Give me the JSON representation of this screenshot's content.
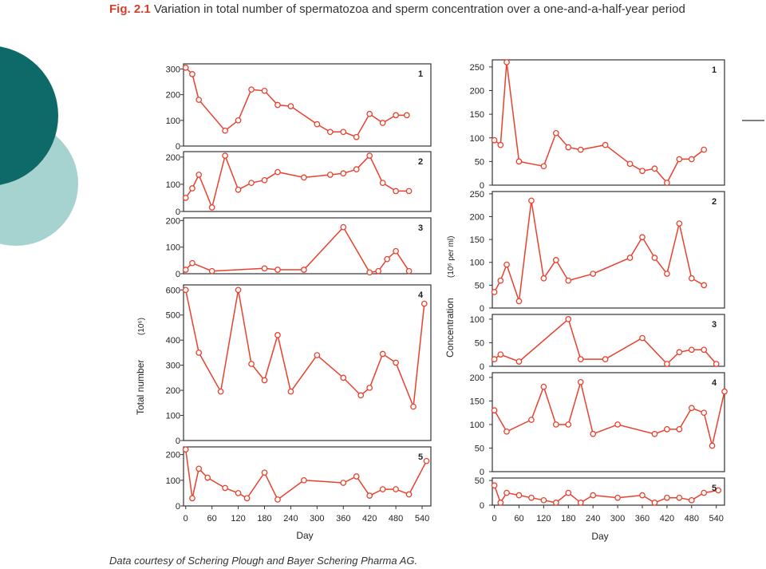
{
  "caption": {
    "label": "Fig. 2.1",
    "text": " Variation in total number of spermatozoa and sperm concentration over a one-and-a-half-year period"
  },
  "credit": "Data courtesy of Schering Plough and Bayer Schering Pharma AG.",
  "colors": {
    "series": "#e8412e",
    "caption_label": "#d2402d",
    "deco_dark": "#0e6a68",
    "deco_light": "#a6d3d0"
  },
  "chart_data": [
    {
      "type": "line",
      "title": "",
      "xlabel": "Day",
      "ylabel": "Total number",
      "ylabel_unit": "(10⁶)",
      "xlim": [
        -5,
        560
      ],
      "xticks": [
        0,
        60,
        120,
        180,
        240,
        300,
        360,
        420,
        480,
        540
      ],
      "panels": [
        {
          "label": "1",
          "ylim": [
            0,
            320
          ],
          "yticks": [
            0,
            100,
            200,
            300
          ],
          "x": [
            0,
            15,
            30,
            90,
            120,
            150,
            180,
            210,
            240,
            300,
            330,
            360,
            390,
            420,
            450,
            480,
            505
          ],
          "y": [
            305,
            280,
            180,
            60,
            100,
            220,
            215,
            160,
            155,
            85,
            55,
            55,
            35,
            125,
            90,
            120,
            120
          ]
        },
        {
          "label": "2",
          "ylim": [
            0,
            220
          ],
          "yticks": [
            0,
            100,
            200
          ],
          "x": [
            0,
            15,
            30,
            60,
            90,
            120,
            150,
            180,
            210,
            270,
            330,
            360,
            390,
            420,
            450,
            480,
            510
          ],
          "y": [
            50,
            85,
            135,
            15,
            205,
            80,
            105,
            115,
            145,
            125,
            135,
            140,
            155,
            205,
            105,
            75,
            75
          ]
        },
        {
          "label": "3",
          "ylim": [
            0,
            210
          ],
          "yticks": [
            0,
            100,
            200
          ],
          "x": [
            0,
            15,
            60,
            180,
            210,
            270,
            360,
            420,
            440,
            460,
            480,
            510
          ],
          "y": [
            15,
            40,
            10,
            20,
            15,
            15,
            175,
            5,
            10,
            55,
            85,
            10
          ]
        },
        {
          "label": "4",
          "ylim": [
            0,
            620
          ],
          "yticks": [
            0,
            100,
            200,
            300,
            400,
            500,
            600
          ],
          "x": [
            0,
            30,
            80,
            120,
            150,
            180,
            210,
            240,
            300,
            360,
            400,
            420,
            450,
            480,
            520,
            545
          ],
          "y": [
            600,
            350,
            195,
            600,
            305,
            240,
            420,
            195,
            340,
            250,
            180,
            210,
            345,
            310,
            135,
            545
          ]
        },
        {
          "label": "5",
          "ylim": [
            0,
            230
          ],
          "yticks": [
            0,
            100,
            200
          ],
          "x": [
            0,
            15,
            30,
            50,
            90,
            120,
            140,
            180,
            210,
            270,
            360,
            390,
            420,
            450,
            480,
            510,
            550
          ],
          "y": [
            220,
            30,
            145,
            110,
            70,
            50,
            30,
            130,
            25,
            100,
            90,
            115,
            40,
            65,
            65,
            45,
            175
          ]
        }
      ]
    },
    {
      "type": "line",
      "title": "",
      "xlabel": "Day",
      "ylabel": "Concentration",
      "ylabel_unit": "(10⁶ per ml)",
      "xlim": [
        -5,
        560
      ],
      "xticks": [
        0,
        60,
        120,
        180,
        240,
        300,
        360,
        420,
        480,
        540
      ],
      "panels": [
        {
          "label": "1",
          "ylim": [
            0,
            265
          ],
          "yticks": [
            0,
            50,
            100,
            150,
            200,
            250
          ],
          "x": [
            0,
            15,
            30,
            60,
            120,
            150,
            180,
            210,
            270,
            330,
            360,
            390,
            420,
            450,
            480,
            510
          ],
          "y": [
            95,
            85,
            260,
            50,
            40,
            110,
            80,
            75,
            85,
            45,
            30,
            35,
            5,
            55,
            55,
            75
          ]
        },
        {
          "label": "2",
          "ylim": [
            0,
            255
          ],
          "yticks": [
            0,
            50,
            100,
            150,
            200,
            250
          ],
          "x": [
            0,
            15,
            30,
            60,
            90,
            120,
            150,
            180,
            240,
            330,
            360,
            390,
            420,
            450,
            480,
            510
          ],
          "y": [
            35,
            60,
            95,
            15,
            235,
            65,
            105,
            60,
            75,
            110,
            155,
            110,
            75,
            185,
            65,
            50
          ]
        },
        {
          "label": "3",
          "ylim": [
            0,
            110
          ],
          "yticks": [
            0,
            50,
            100
          ],
          "x": [
            0,
            15,
            60,
            180,
            210,
            270,
            360,
            420,
            450,
            480,
            510,
            540
          ],
          "y": [
            15,
            25,
            10,
            100,
            15,
            15,
            60,
            5,
            30,
            35,
            35,
            5
          ]
        },
        {
          "label": "4",
          "ylim": [
            0,
            210
          ],
          "yticks": [
            0,
            50,
            100,
            150,
            200
          ],
          "x": [
            0,
            30,
            90,
            120,
            150,
            180,
            210,
            240,
            300,
            390,
            420,
            450,
            480,
            510,
            530,
            560
          ],
          "y": [
            130,
            85,
            110,
            180,
            100,
            100,
            190,
            80,
            100,
            80,
            90,
            90,
            135,
            125,
            55,
            170
          ]
        },
        {
          "label": "5",
          "ylim": [
            0,
            55
          ],
          "yticks": [
            0,
            50
          ],
          "x": [
            0,
            15,
            30,
            60,
            90,
            120,
            150,
            180,
            210,
            240,
            300,
            360,
            390,
            420,
            450,
            480,
            510,
            545
          ],
          "y": [
            40,
            5,
            25,
            20,
            15,
            10,
            5,
            25,
            5,
            20,
            15,
            20,
            5,
            15,
            15,
            10,
            25,
            30
          ]
        }
      ]
    }
  ]
}
